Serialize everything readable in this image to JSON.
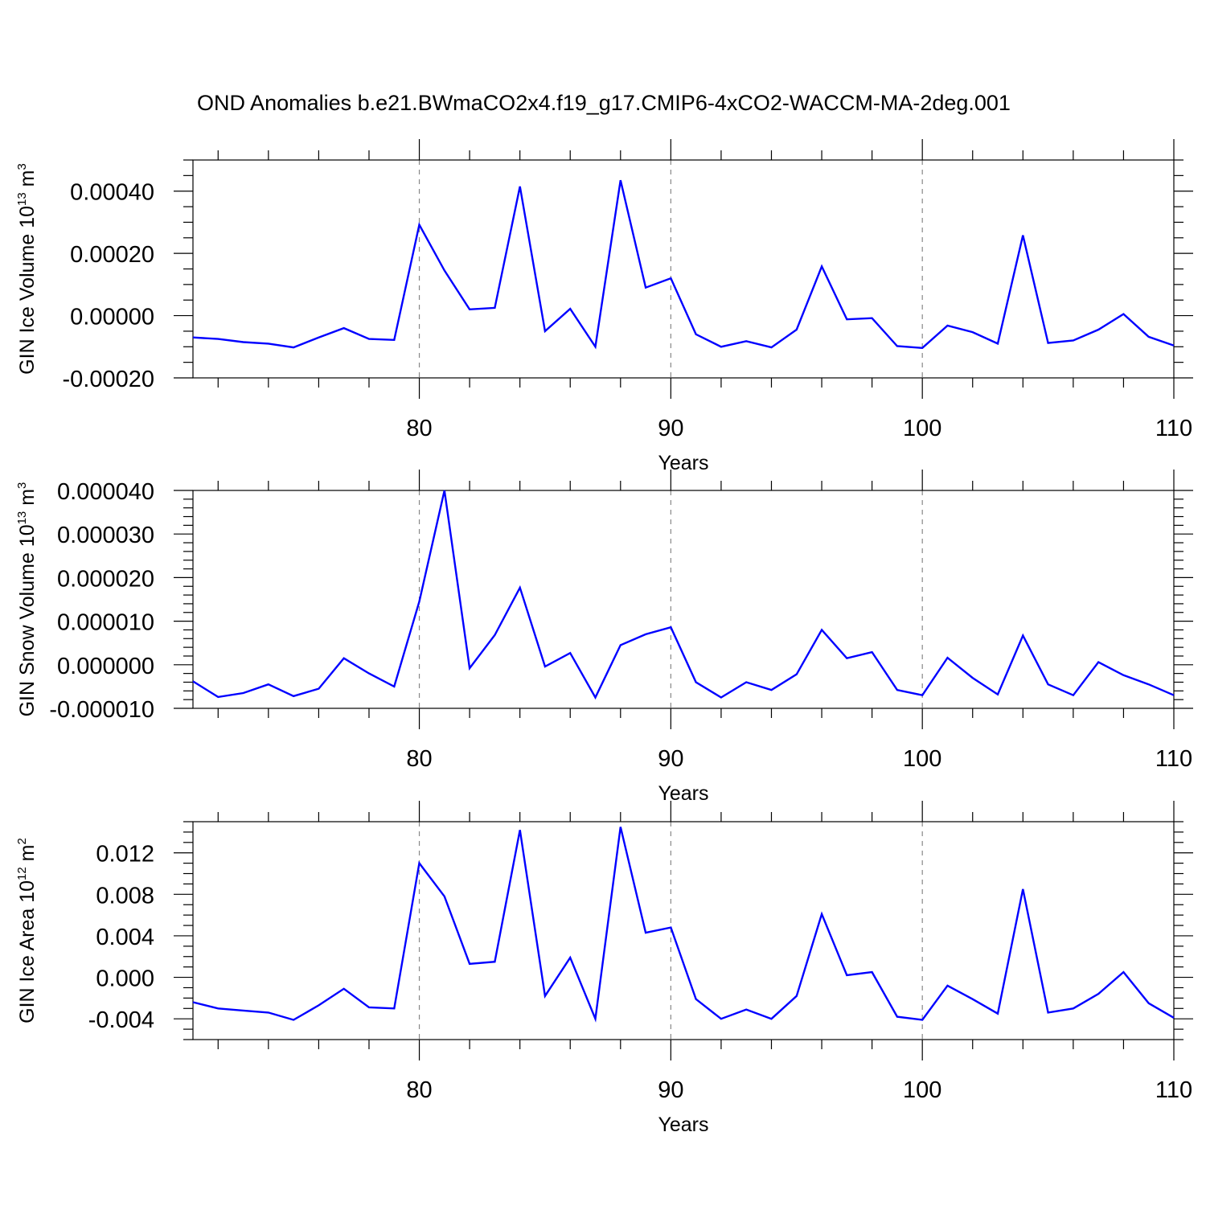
{
  "chart_data": {
    "title": "OND Anomalies b.e21.BWmaCO2x4.f19_g17.CMIP6-4xCO2-WACCM-MA-2deg.001",
    "line_color": "#0000ff",
    "grid_color": "#888888",
    "panels": [
      {
        "type": "line",
        "ylabel": "GIN Ice Volume 10",
        "ylabel_exp": "13",
        "ylabel_unit": " m",
        "ylabel_unit_exp": "3",
        "xlabel": "Years",
        "xlim": [
          71,
          110
        ],
        "ylim": [
          -0.0002,
          0.0005
        ],
        "xticks": [
          80,
          90,
          100,
          110
        ],
        "xtick_labels": [
          "80",
          "90",
          "100",
          "110"
        ],
        "yticks": [
          -0.0002,
          0,
          0.0002,
          0.0004
        ],
        "ytick_labels": [
          "-0.00020",
          "0.00000",
          "0.00020",
          "0.00040"
        ],
        "yminor_step": 5e-05,
        "grid_x": [
          80,
          90,
          100
        ],
        "x": [
          71,
          72,
          73,
          74,
          75,
          76,
          77,
          78,
          79,
          80,
          81,
          82,
          83,
          84,
          85,
          86,
          87,
          88,
          89,
          90,
          91,
          92,
          93,
          94,
          95,
          96,
          97,
          98,
          99,
          100,
          101,
          102,
          103,
          104,
          105,
          106,
          107,
          108,
          109,
          110
        ],
        "values": [
          -7e-05,
          -7.5e-05,
          -8.5e-05,
          -9e-05,
          -0.000102,
          -7e-05,
          -4e-05,
          -7.5e-05,
          -7.8e-05,
          0.000292,
          0.000145,
          2e-05,
          2.5e-05,
          0.000415,
          -5e-05,
          2.2e-05,
          -0.0001,
          0.000435,
          9e-05,
          0.00012,
          -6e-05,
          -0.0001,
          -8.2e-05,
          -0.000102,
          -4.5e-05,
          0.000158,
          -1.2e-05,
          -8e-06,
          -9.8e-05,
          -0.000104,
          -3.2e-05,
          -5.3e-05,
          -9e-05,
          0.000258,
          -8.8e-05,
          -8e-05,
          -4.5e-05,
          5e-06,
          -6.8e-05,
          -9.6e-05
        ]
      },
      {
        "type": "line",
        "ylabel": "GIN Snow Volume 10",
        "ylabel_exp": "13",
        "ylabel_unit": " m",
        "ylabel_unit_exp": "3",
        "xlabel": "Years",
        "xlim": [
          71,
          110
        ],
        "ylim": [
          -1e-05,
          4e-05
        ],
        "xticks": [
          80,
          90,
          100,
          110
        ],
        "xtick_labels": [
          "80",
          "90",
          "100",
          "110"
        ],
        "yticks": [
          -1e-05,
          0,
          1e-05,
          2e-05,
          3e-05,
          4e-05
        ],
        "ytick_labels": [
          "-0.000010",
          "0.000000",
          "0.000010",
          "0.000020",
          "0.000030",
          "0.000040"
        ],
        "yminor_step": 2e-06,
        "grid_x": [
          80,
          90,
          100
        ],
        "x": [
          71,
          72,
          73,
          74,
          75,
          76,
          77,
          78,
          79,
          80,
          81,
          82,
          83,
          84,
          85,
          86,
          87,
          88,
          89,
          90,
          91,
          92,
          93,
          94,
          95,
          96,
          97,
          98,
          99,
          100,
          101,
          102,
          103,
          104,
          105,
          106,
          107,
          108,
          109,
          110
        ],
        "values": [
          -3.8e-06,
          -7.4e-06,
          -6.5e-06,
          -4.5e-06,
          -7.2e-06,
          -5.5e-06,
          1.5e-06,
          -2e-06,
          -5e-06,
          1.45e-05,
          4e-05,
          -8e-07,
          6.8e-06,
          1.77e-05,
          -4e-07,
          2.7e-06,
          -7.5e-06,
          4.5e-06,
          7e-06,
          8.6e-06,
          -4e-06,
          -7.5e-06,
          -4e-06,
          -5.8e-06,
          -2.2e-06,
          8e-06,
          1.5e-06,
          2.9e-06,
          -5.8e-06,
          -7e-06,
          1.6e-06,
          -3e-06,
          -6.8e-06,
          6.7e-06,
          -4.5e-06,
          -7e-06,
          6e-07,
          -2.4e-06,
          -4.5e-06,
          -7e-06
        ]
      },
      {
        "type": "line",
        "ylabel": "GIN Ice Area 10",
        "ylabel_exp": "12",
        "ylabel_unit": " m",
        "ylabel_unit_exp": "2",
        "xlabel": "Years",
        "xlim": [
          71,
          110
        ],
        "ylim": [
          -0.006,
          0.015
        ],
        "xticks": [
          80,
          90,
          100,
          110
        ],
        "xtick_labels": [
          "80",
          "90",
          "100",
          "110"
        ],
        "yticks": [
          -0.004,
          0,
          0.004,
          0.008,
          0.012
        ],
        "ytick_labels": [
          "-0.004",
          "0.000",
          "0.004",
          "0.008",
          "0.012"
        ],
        "yminor_step": 0.001,
        "grid_x": [
          80,
          90,
          100
        ],
        "x": [
          71,
          72,
          73,
          74,
          75,
          76,
          77,
          78,
          79,
          80,
          81,
          82,
          83,
          84,
          85,
          86,
          87,
          88,
          89,
          90,
          91,
          92,
          93,
          94,
          95,
          96,
          97,
          98,
          99,
          100,
          101,
          102,
          103,
          104,
          105,
          106,
          107,
          108,
          109,
          110
        ],
        "values": [
          -0.0024,
          -0.003,
          -0.0032,
          -0.0034,
          -0.0041,
          -0.0027,
          -0.0011,
          -0.0029,
          -0.003,
          0.011,
          0.0078,
          0.0013,
          0.0015,
          0.0142,
          -0.0018,
          0.0019,
          -0.004,
          0.0145,
          0.0043,
          0.0048,
          -0.0021,
          -0.004,
          -0.0031,
          -0.004,
          -0.0018,
          0.0061,
          0.0002,
          0.0005,
          -0.0038,
          -0.0041,
          -0.0008,
          -0.0021,
          -0.0035,
          0.0085,
          -0.0034,
          -0.003,
          -0.0016,
          0.0005,
          -0.0025,
          -0.0039
        ]
      }
    ]
  }
}
